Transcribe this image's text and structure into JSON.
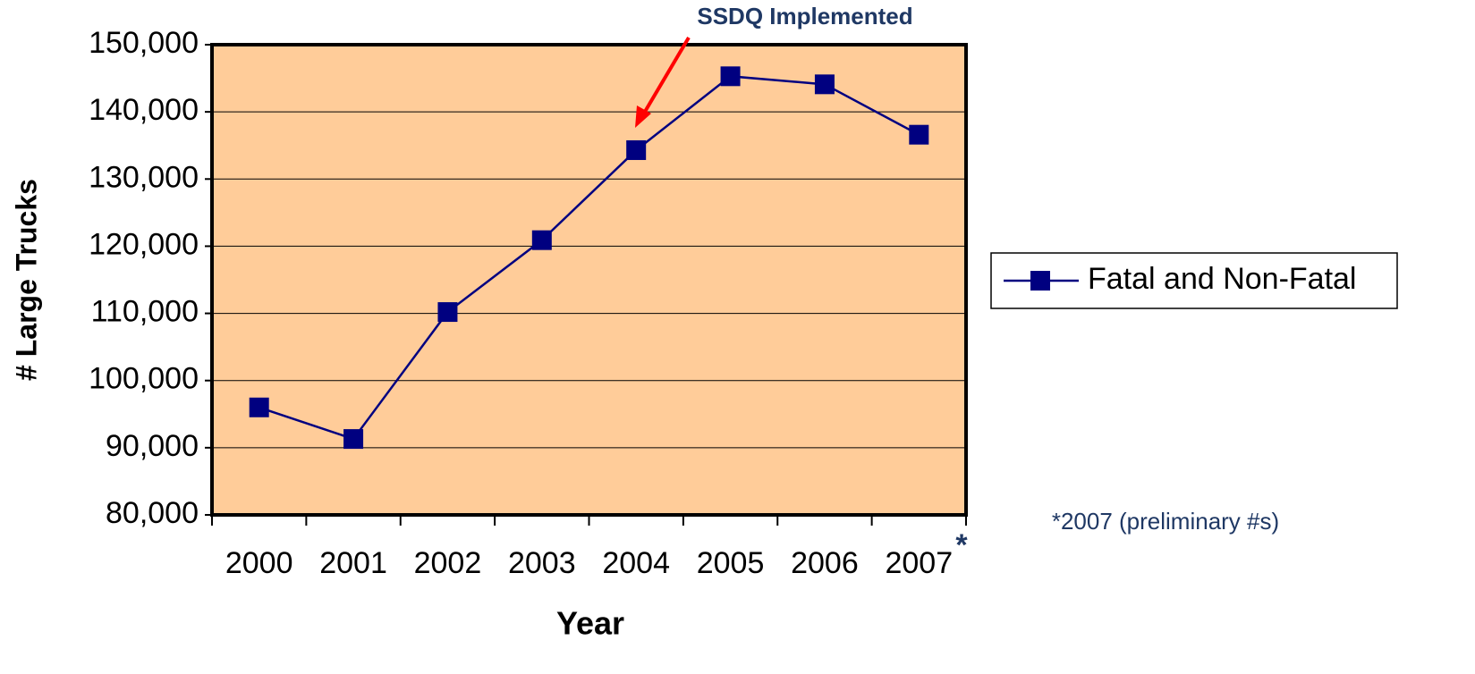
{
  "chart_data": {
    "type": "line",
    "annotations": [
      "SSDQ Implemented",
      "*",
      "*2007 (preliminary #s)"
    ],
    "x_label": "Year",
    "y_label": "# Large Trucks",
    "categories": [
      "2000",
      "2001",
      "2002",
      "2003",
      "2004",
      "2005",
      "2006",
      "2007"
    ],
    "series": [
      {
        "name": "Fatal and Non-Fatal",
        "color": "#000080",
        "values": [
          96000,
          91300,
          110200,
          120900,
          134300,
          145300,
          144100,
          136600
        ]
      }
    ],
    "ylim": [
      80000,
      150000
    ],
    "yticks": [
      {
        "value": 80000,
        "label": "80,000"
      },
      {
        "value": 90000,
        "label": "90,000"
      },
      {
        "value": 100000,
        "label": "100,000"
      },
      {
        "value": 110000,
        "label": "110,000"
      },
      {
        "value": 120000,
        "label": "120,000"
      },
      {
        "value": 130000,
        "label": "130,000"
      },
      {
        "value": 140000,
        "label": "140,000"
      },
      {
        "value": 150000,
        "label": "150,000"
      }
    ],
    "grid": true,
    "background": "#FFCC99",
    "legend": "right"
  }
}
